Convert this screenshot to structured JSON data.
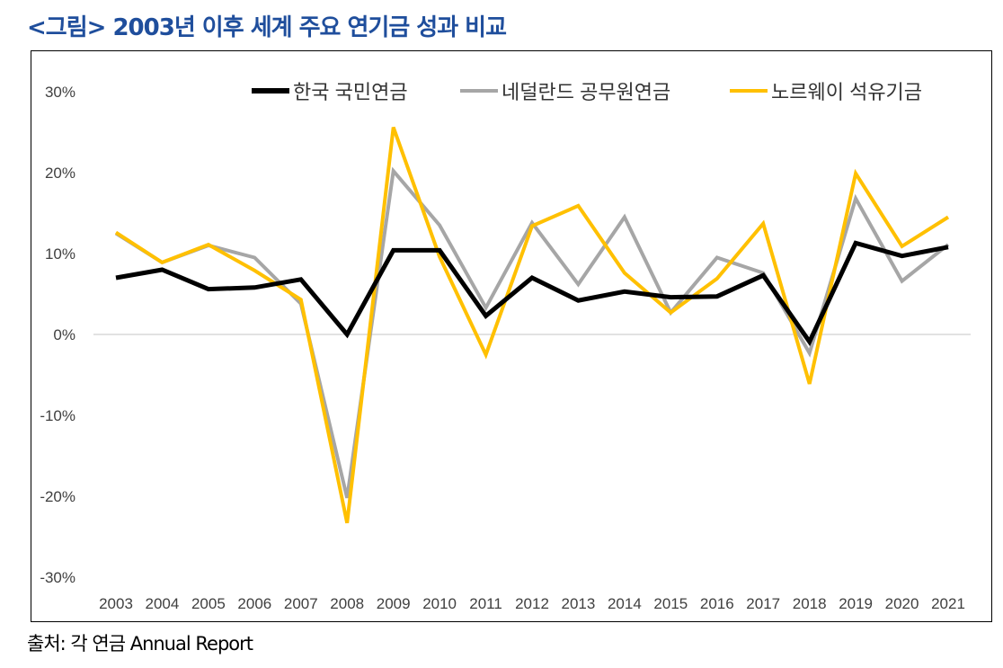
{
  "header": {
    "title": "<그림> 2003년 이후 세계 주요 연기금 성과 비교"
  },
  "footer": {
    "source": "출처:  각 연금 Annual Report"
  },
  "chart_data": {
    "type": "line",
    "title": "<그림> 2003년 이후 세계 주요 연기금 성과 비교",
    "xlabel": "",
    "ylabel": "",
    "ylim": [
      -30,
      30
    ],
    "yticks": [
      30,
      20,
      10,
      0,
      -10,
      -20,
      -30
    ],
    "ytick_labels": [
      "30%",
      "20%",
      "10%",
      "0%",
      "-10%",
      "-20%",
      "-30%"
    ],
    "grid": false,
    "legend_position": "top-right",
    "categories": [
      "2003",
      "2004",
      "2005",
      "2006",
      "2007",
      "2008",
      "2009",
      "2010",
      "2011",
      "2012",
      "2013",
      "2014",
      "2015",
      "2016",
      "2017",
      "2018",
      "2019",
      "2020",
      "2021"
    ],
    "series": [
      {
        "name": "한국 국민연금",
        "color": "#000000",
        "values": [
          7.0,
          8.0,
          5.6,
          5.8,
          6.8,
          0.0,
          10.4,
          10.4,
          2.3,
          7.0,
          4.2,
          5.3,
          4.6,
          4.7,
          7.3,
          -0.9,
          11.3,
          9.7,
          10.8
        ]
      },
      {
        "name": "네덜란드 공무원연금",
        "color": "#a6a6a6",
        "values": [
          12.5,
          8.9,
          11.0,
          9.5,
          3.8,
          -20.2,
          20.2,
          13.5,
          3.3,
          13.8,
          6.2,
          14.5,
          2.7,
          9.5,
          7.6,
          -2.3,
          16.8,
          6.6,
          11.1
        ]
      },
      {
        "name": "노르웨이 석유기금",
        "color": "#ffc000",
        "values": [
          12.6,
          8.9,
          11.1,
          7.9,
          4.3,
          -23.3,
          25.6,
          9.6,
          -2.5,
          13.4,
          15.9,
          7.6,
          2.7,
          6.9,
          13.7,
          -6.1,
          19.9,
          10.9,
          14.5
        ]
      }
    ]
  }
}
